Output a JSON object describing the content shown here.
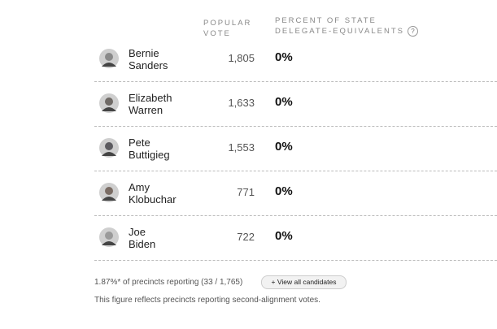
{
  "header": {
    "popular_vote": [
      "POPULAR",
      "VOTE"
    ],
    "percent": [
      "PERCENT OF STATE",
      "DELEGATE-EQUIVALENTS"
    ],
    "help": "?"
  },
  "table": {
    "rows": [
      {
        "first": "Bernie",
        "last": "Sanders",
        "votes": "1,805",
        "percent": "0%"
      },
      {
        "first": "Elizabeth",
        "last": "Warren",
        "votes": "1,633",
        "percent": "0%"
      },
      {
        "first": "Pete",
        "last": "Buttigieg",
        "votes": "1,553",
        "percent": "0%"
      },
      {
        "first": "Amy",
        "last": "Klobuchar",
        "votes": "771",
        "percent": "0%"
      },
      {
        "first": "Joe",
        "last": "Biden",
        "votes": "722",
        "percent": "0%"
      }
    ]
  },
  "footer": {
    "reporting": "1.87%* of precincts reporting (33 / 1,765)",
    "button": "+ View all candidates",
    "note": "This figure reflects precincts reporting second-alignment votes."
  }
}
